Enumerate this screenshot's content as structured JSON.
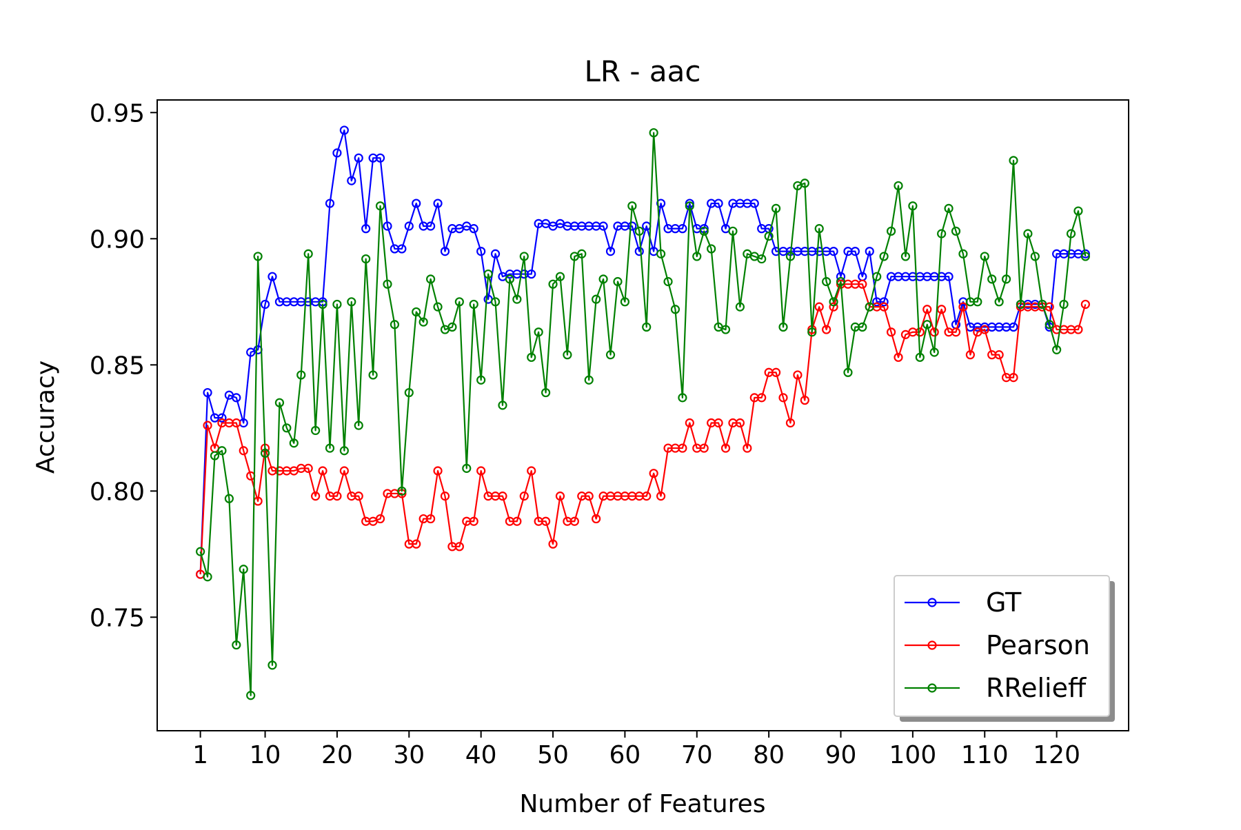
{
  "chart_data": {
    "type": "line",
    "title": "LR - aac",
    "xlabel": "Number of Features",
    "ylabel": "Accuracy",
    "xlim": [
      -5,
      130
    ],
    "ylim": [
      0.705,
      0.955
    ],
    "xticks": [
      1,
      10,
      20,
      30,
      40,
      50,
      60,
      70,
      80,
      90,
      100,
      110,
      120
    ],
    "xtick_labels": [
      "1",
      "10",
      "20",
      "30",
      "40",
      "50",
      "60",
      "70",
      "80",
      "90",
      "100",
      "110",
      "120"
    ],
    "yticks": [
      0.75,
      0.8,
      0.85,
      0.9,
      0.95
    ],
    "ytick_labels": [
      "0.75",
      "0.80",
      "0.85",
      "0.90",
      "0.95"
    ],
    "grid": false,
    "legend": "lower right",
    "series": [
      {
        "name": "GT",
        "color": "#0000ff",
        "x": [
          1,
          2,
          3,
          4,
          5,
          6,
          7,
          8,
          9,
          10,
          11,
          12,
          13,
          14,
          15,
          16,
          17,
          18,
          19,
          20,
          21,
          22,
          23,
          24,
          25,
          26,
          27,
          28,
          29,
          30,
          31,
          32,
          33,
          34,
          35,
          36,
          37,
          38,
          39,
          40,
          41,
          42,
          43,
          44,
          45,
          46,
          47,
          48,
          49,
          50,
          51,
          52,
          53,
          54,
          55,
          56,
          57,
          58,
          59,
          60,
          61,
          62,
          63,
          64,
          65,
          66,
          67,
          68,
          69,
          70,
          71,
          72,
          73,
          74,
          75,
          76,
          77,
          78,
          79,
          80,
          81,
          82,
          83,
          84,
          85,
          86,
          87,
          88,
          89,
          90,
          91,
          92,
          93,
          94,
          95,
          96,
          97,
          98,
          99,
          100,
          101,
          102,
          103,
          104,
          105,
          106,
          107,
          108,
          109,
          110,
          111,
          112,
          113,
          114,
          115,
          116,
          117,
          118,
          119,
          120,
          121,
          122,
          123,
          124
        ],
        "values": [
          0.767,
          0.839,
          0.829,
          0.829,
          0.838,
          0.837,
          0.827,
          0.855,
          0.856,
          0.874,
          0.885,
          0.875,
          0.875,
          0.875,
          0.875,
          0.875,
          0.875,
          0.875,
          0.914,
          0.934,
          0.943,
          0.923,
          0.932,
          0.904,
          0.932,
          0.932,
          0.905,
          0.896,
          0.896,
          0.905,
          0.914,
          0.905,
          0.905,
          0.914,
          0.895,
          0.904,
          0.904,
          0.905,
          0.904,
          0.895,
          0.876,
          0.894,
          0.885,
          0.886,
          0.886,
          0.886,
          0.886,
          0.906,
          0.906,
          0.905,
          0.906,
          0.905,
          0.905,
          0.905,
          0.905,
          0.905,
          0.905,
          0.895,
          0.905,
          0.905,
          0.905,
          0.895,
          0.905,
          0.895,
          0.914,
          0.904,
          0.904,
          0.904,
          0.914,
          0.904,
          0.904,
          0.914,
          0.914,
          0.904,
          0.914,
          0.914,
          0.914,
          0.914,
          0.904,
          0.904,
          0.895,
          0.895,
          0.895,
          0.895,
          0.895,
          0.895,
          0.895,
          0.895,
          0.895,
          0.885,
          0.895,
          0.895,
          0.885,
          0.895,
          0.875,
          0.875,
          0.885,
          0.885,
          0.885,
          0.885,
          0.885,
          0.885,
          0.885,
          0.885,
          0.885,
          0.866,
          0.875,
          0.865,
          0.865,
          0.865,
          0.865,
          0.865,
          0.865,
          0.865,
          0.874,
          0.874,
          0.874,
          0.874,
          0.865,
          0.894,
          0.894,
          0.894,
          0.894,
          0.894
        ]
      },
      {
        "name": "Pearson",
        "color": "#ff0000",
        "x": [
          1,
          2,
          3,
          4,
          5,
          6,
          7,
          8,
          9,
          10,
          11,
          12,
          13,
          14,
          15,
          16,
          17,
          18,
          19,
          20,
          21,
          22,
          23,
          24,
          25,
          26,
          27,
          28,
          29,
          30,
          31,
          32,
          33,
          34,
          35,
          36,
          37,
          38,
          39,
          40,
          41,
          42,
          43,
          44,
          45,
          46,
          47,
          48,
          49,
          50,
          51,
          52,
          53,
          54,
          55,
          56,
          57,
          58,
          59,
          60,
          61,
          62,
          63,
          64,
          65,
          66,
          67,
          68,
          69,
          70,
          71,
          72,
          73,
          74,
          75,
          76,
          77,
          78,
          79,
          80,
          81,
          82,
          83,
          84,
          85,
          86,
          87,
          88,
          89,
          90,
          91,
          92,
          93,
          94,
          95,
          96,
          97,
          98,
          99,
          100,
          101,
          102,
          103,
          104,
          105,
          106,
          107,
          108,
          109,
          110,
          111,
          112,
          113,
          114,
          115,
          116,
          117,
          118,
          119,
          120,
          121,
          122,
          123,
          124
        ],
        "values": [
          0.767,
          0.826,
          0.817,
          0.827,
          0.827,
          0.827,
          0.816,
          0.806,
          0.796,
          0.817,
          0.808,
          0.808,
          0.808,
          0.808,
          0.809,
          0.809,
          0.798,
          0.808,
          0.798,
          0.798,
          0.808,
          0.798,
          0.798,
          0.788,
          0.788,
          0.789,
          0.799,
          0.799,
          0.799,
          0.779,
          0.779,
          0.789,
          0.789,
          0.808,
          0.798,
          0.778,
          0.778,
          0.788,
          0.788,
          0.808,
          0.798,
          0.798,
          0.798,
          0.788,
          0.788,
          0.798,
          0.808,
          0.788,
          0.788,
          0.779,
          0.798,
          0.788,
          0.788,
          0.798,
          0.798,
          0.789,
          0.798,
          0.798,
          0.798,
          0.798,
          0.798,
          0.798,
          0.798,
          0.807,
          0.798,
          0.817,
          0.817,
          0.817,
          0.827,
          0.817,
          0.817,
          0.827,
          0.827,
          0.817,
          0.827,
          0.827,
          0.817,
          0.837,
          0.837,
          0.847,
          0.847,
          0.837,
          0.827,
          0.846,
          0.836,
          0.864,
          0.873,
          0.864,
          0.873,
          0.882,
          0.882,
          0.882,
          0.882,
          0.873,
          0.873,
          0.873,
          0.863,
          0.853,
          0.862,
          0.863,
          0.863,
          0.872,
          0.863,
          0.872,
          0.863,
          0.863,
          0.873,
          0.854,
          0.863,
          0.864,
          0.854,
          0.854,
          0.845,
          0.845,
          0.873,
          0.873,
          0.873,
          0.873,
          0.873,
          0.864,
          0.864,
          0.864,
          0.864,
          0.874
        ]
      },
      {
        "name": "RRelieff",
        "color": "#008000",
        "x": [
          1,
          2,
          3,
          4,
          5,
          6,
          7,
          8,
          9,
          10,
          11,
          12,
          13,
          14,
          15,
          16,
          17,
          18,
          19,
          20,
          21,
          22,
          23,
          24,
          25,
          26,
          27,
          28,
          29,
          30,
          31,
          32,
          33,
          34,
          35,
          36,
          37,
          38,
          39,
          40,
          41,
          42,
          43,
          44,
          45,
          46,
          47,
          48,
          49,
          50,
          51,
          52,
          53,
          54,
          55,
          56,
          57,
          58,
          59,
          60,
          61,
          62,
          63,
          64,
          65,
          66,
          67,
          68,
          69,
          70,
          71,
          72,
          73,
          74,
          75,
          76,
          77,
          78,
          79,
          80,
          81,
          82,
          83,
          84,
          85,
          86,
          87,
          88,
          89,
          90,
          91,
          92,
          93,
          94,
          95,
          96,
          97,
          98,
          99,
          100,
          101,
          102,
          103,
          104,
          105,
          106,
          107,
          108,
          109,
          110,
          111,
          112,
          113,
          114,
          115,
          116,
          117,
          118,
          119,
          120,
          121,
          122,
          123,
          124
        ],
        "values": [
          0.776,
          0.766,
          0.814,
          0.816,
          0.797,
          0.739,
          0.769,
          0.719,
          0.893,
          0.815,
          0.731,
          0.835,
          0.825,
          0.819,
          0.846,
          0.894,
          0.824,
          0.874,
          0.817,
          0.874,
          0.816,
          0.875,
          0.826,
          0.892,
          0.846,
          0.913,
          0.882,
          0.866,
          0.8,
          0.839,
          0.871,
          0.867,
          0.884,
          0.873,
          0.864,
          0.865,
          0.875,
          0.809,
          0.874,
          0.844,
          0.886,
          0.875,
          0.834,
          0.884,
          0.876,
          0.893,
          0.853,
          0.863,
          0.839,
          0.882,
          0.885,
          0.854,
          0.893,
          0.894,
          0.844,
          0.876,
          0.884,
          0.854,
          0.883,
          0.875,
          0.913,
          0.903,
          0.865,
          0.942,
          0.894,
          0.883,
          0.872,
          0.837,
          0.913,
          0.893,
          0.903,
          0.896,
          0.865,
          0.864,
          0.903,
          0.873,
          0.894,
          0.893,
          0.892,
          0.901,
          0.912,
          0.865,
          0.893,
          0.921,
          0.922,
          0.863,
          0.904,
          0.883,
          0.875,
          0.883,
          0.847,
          0.865,
          0.865,
          0.873,
          0.885,
          0.893,
          0.903,
          0.921,
          0.893,
          0.913,
          0.853,
          0.866,
          0.855,
          0.902,
          0.912,
          0.903,
          0.894,
          0.875,
          0.875,
          0.893,
          0.884,
          0.875,
          0.884,
          0.931,
          0.874,
          0.902,
          0.893,
          0.874,
          0.866,
          0.856,
          0.874,
          0.902,
          0.911,
          0.893
        ]
      }
    ]
  }
}
